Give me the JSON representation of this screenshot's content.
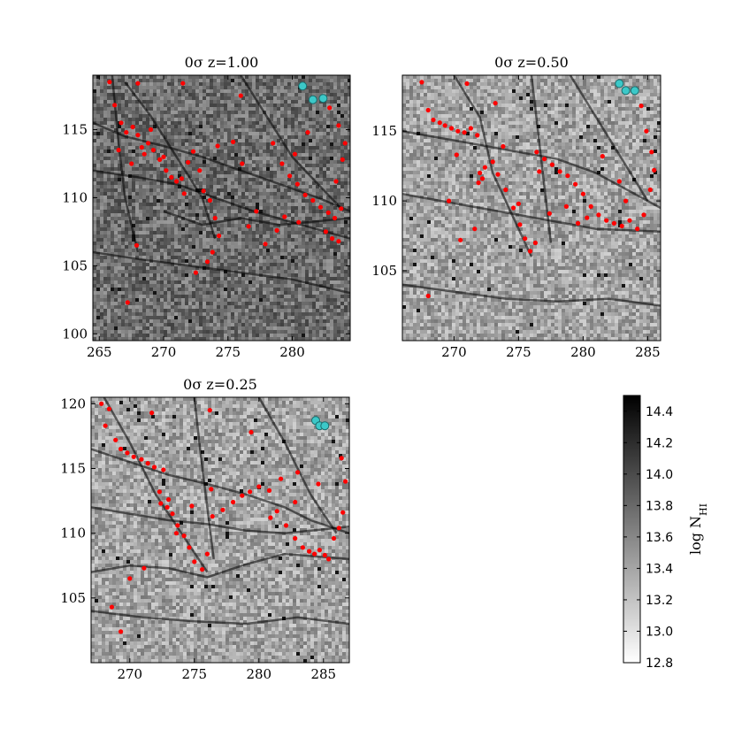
{
  "chart_data": [
    {
      "type": "scatter",
      "title": "0σ z=1.00",
      "xlim": [
        264.5,
        284.5
      ],
      "ylim": [
        99.5,
        119
      ],
      "xticks": [
        265,
        270,
        275,
        280
      ],
      "yticks": [
        100,
        105,
        110,
        115
      ],
      "xtick_labels": [
        "265",
        "270",
        "275",
        "280"
      ],
      "ytick_labels": [
        "100",
        "105",
        "110",
        "115"
      ],
      "filaments": [
        [
          [
            264.5,
            115.5
          ],
          [
            267,
            114.5
          ],
          [
            270,
            113.8
          ],
          [
            273,
            113
          ],
          [
            276,
            112
          ],
          [
            279,
            111
          ],
          [
            282,
            110
          ],
          [
            284.5,
            109
          ]
        ],
        [
          [
            264.5,
            112
          ],
          [
            268,
            111.5
          ],
          [
            271,
            111
          ],
          [
            274,
            110
          ],
          [
            277,
            109
          ],
          [
            280,
            108.2
          ],
          [
            284.5,
            107
          ]
        ],
        [
          [
            267,
            118.5
          ],
          [
            269,
            116
          ],
          [
            271,
            113
          ],
          [
            273,
            110
          ],
          [
            274,
            107
          ]
        ],
        [
          [
            276,
            119
          ],
          [
            278,
            116
          ],
          [
            280,
            113
          ],
          [
            282,
            111
          ],
          [
            284,
            109
          ]
        ],
        [
          [
            264.5,
            106
          ],
          [
            268,
            105.5
          ],
          [
            272,
            105
          ],
          [
            276,
            104.5
          ],
          [
            280,
            104
          ],
          [
            284.5,
            103
          ]
        ],
        [
          [
            270,
            109
          ],
          [
            273,
            108
          ],
          [
            276,
            108.5
          ],
          [
            279,
            108
          ],
          [
            284.5,
            108.5
          ]
        ],
        [
          [
            266,
            119
          ],
          [
            266.5,
            114
          ],
          [
            267,
            110
          ],
          [
            268,
            106
          ]
        ]
      ],
      "points": [
        [
          265.8,
          118.5
        ],
        [
          266.2,
          116.8
        ],
        [
          266.7,
          115.5
        ],
        [
          267.1,
          114.8
        ],
        [
          267.6,
          115.2
        ],
        [
          268.0,
          114.6
        ],
        [
          268.3,
          113.7
        ],
        [
          268.8,
          114.0
        ],
        [
          269.2,
          113.5
        ],
        [
          269.7,
          112.8
        ],
        [
          270.2,
          112.0
        ],
        [
          270.6,
          111.5
        ],
        [
          271.0,
          111.2
        ],
        [
          271.4,
          111.4
        ],
        [
          271.9,
          112.6
        ],
        [
          272.3,
          113.4
        ],
        [
          272.8,
          112.0
        ],
        [
          273.1,
          110.5
        ],
        [
          273.6,
          109.8
        ],
        [
          274.0,
          108.5
        ],
        [
          274.3,
          107.2
        ],
        [
          273.8,
          106.0
        ],
        [
          273.4,
          105.3
        ],
        [
          272.5,
          104.5
        ],
        [
          271.6,
          110.3
        ],
        [
          270.0,
          113.0
        ],
        [
          269.0,
          115.0
        ],
        [
          268.5,
          113.2
        ],
        [
          267.5,
          112.5
        ],
        [
          266.5,
          113.5
        ],
        [
          267.9,
          106.5
        ],
        [
          267.2,
          102.3
        ],
        [
          268.0,
          118.4
        ],
        [
          271.5,
          118.4
        ],
        [
          276.0,
          117.5
        ],
        [
          278.5,
          114.0
        ],
        [
          279.2,
          112.5
        ],
        [
          279.8,
          111.6
        ],
        [
          280.4,
          111.0
        ],
        [
          281.0,
          110.2
        ],
        [
          281.6,
          109.8
        ],
        [
          282.2,
          109.3
        ],
        [
          282.8,
          108.9
        ],
        [
          283.3,
          108.5
        ],
        [
          283.8,
          109.2
        ],
        [
          282.6,
          107.5
        ],
        [
          283.1,
          107.0
        ],
        [
          283.6,
          106.8
        ],
        [
          280.5,
          108.2
        ],
        [
          279.4,
          108.6
        ],
        [
          278.8,
          107.6
        ],
        [
          277.9,
          106.6
        ],
        [
          276.6,
          107.9
        ],
        [
          277.2,
          109.0
        ],
        [
          276.1,
          112.5
        ],
        [
          283.4,
          111.2
        ],
        [
          283.9,
          112.8
        ],
        [
          284.1,
          114.0
        ],
        [
          283.6,
          115.3
        ],
        [
          282.9,
          116.6
        ],
        [
          282.4,
          117.4
        ],
        [
          280.2,
          113.2
        ],
        [
          281.2,
          114.8
        ],
        [
          275.4,
          114.1
        ],
        [
          274.2,
          113.8
        ]
      ],
      "highlighted_points": [
        [
          280.8,
          118.2
        ],
        [
          281.6,
          117.2
        ],
        [
          282.4,
          117.3
        ]
      ]
    },
    {
      "type": "scatter",
      "title": "0σ z=0.50",
      "xlim": [
        266,
        286
      ],
      "ylim": [
        100,
        119
      ],
      "xticks": [
        270,
        275,
        280,
        285
      ],
      "yticks": [
        105,
        110,
        115
      ],
      "xtick_labels": [
        "270",
        "275",
        "280",
        "285"
      ],
      "ytick_labels": [
        "105",
        "110",
        "115"
      ],
      "filaments": [
        [
          [
            266,
            115
          ],
          [
            269,
            114.5
          ],
          [
            272,
            114
          ],
          [
            275,
            113.5
          ],
          [
            278,
            113
          ],
          [
            281,
            112
          ],
          [
            284,
            110.5
          ],
          [
            286,
            109.5
          ]
        ],
        [
          [
            266,
            110.5
          ],
          [
            269,
            110
          ],
          [
            272,
            109.5
          ],
          [
            275,
            109
          ],
          [
            278,
            108.5
          ],
          [
            281,
            108
          ],
          [
            286,
            107.8
          ]
        ],
        [
          [
            270,
            119
          ],
          [
            272,
            116
          ],
          [
            273,
            112
          ],
          [
            274.5,
            109
          ],
          [
            276,
            106
          ]
        ],
        [
          [
            279,
            119
          ],
          [
            281,
            116
          ],
          [
            283,
            113
          ],
          [
            285,
            110
          ]
        ],
        [
          [
            266,
            104
          ],
          [
            270,
            103.5
          ],
          [
            274,
            103
          ],
          [
            278,
            102.8
          ],
          [
            282,
            103
          ],
          [
            286,
            102.5
          ]
        ],
        [
          [
            276,
            119
          ],
          [
            276.5,
            115
          ],
          [
            277,
            111
          ],
          [
            277.5,
            107
          ]
        ]
      ],
      "points": [
        [
          267.5,
          118.5
        ],
        [
          268.0,
          116.5
        ],
        [
          268.4,
          115.8
        ],
        [
          268.9,
          115.6
        ],
        [
          269.3,
          115.4
        ],
        [
          269.8,
          115.2
        ],
        [
          270.3,
          115.0
        ],
        [
          270.8,
          114.9
        ],
        [
          271.3,
          115.2
        ],
        [
          271.8,
          114.7
        ],
        [
          272.0,
          112.0
        ],
        [
          272.2,
          111.6
        ],
        [
          271.9,
          111.3
        ],
        [
          272.4,
          112.4
        ],
        [
          273.0,
          112.8
        ],
        [
          273.4,
          111.9
        ],
        [
          274.0,
          110.8
        ],
        [
          274.6,
          109.5
        ],
        [
          275.1,
          108.3
        ],
        [
          275.5,
          107.3
        ],
        [
          275.9,
          106.4
        ],
        [
          276.3,
          107.0
        ],
        [
          271.6,
          108.0
        ],
        [
          270.5,
          107.2
        ],
        [
          269.6,
          110.0
        ],
        [
          270.2,
          113.3
        ],
        [
          273.8,
          113.9
        ],
        [
          276.4,
          113.5
        ],
        [
          277.0,
          113.0
        ],
        [
          277.6,
          112.6
        ],
        [
          278.2,
          112.1
        ],
        [
          278.8,
          111.8
        ],
        [
          279.4,
          111.2
        ],
        [
          280.0,
          110.5
        ],
        [
          280.6,
          109.6
        ],
        [
          281.2,
          109.0
        ],
        [
          281.8,
          108.6
        ],
        [
          282.4,
          108.4
        ],
        [
          283.0,
          108.2
        ],
        [
          283.6,
          108.6
        ],
        [
          284.2,
          108.0
        ],
        [
          284.7,
          109.0
        ],
        [
          285.2,
          110.8
        ],
        [
          285.5,
          112.2
        ],
        [
          285.3,
          113.5
        ],
        [
          284.9,
          115.0
        ],
        [
          284.5,
          116.8
        ],
        [
          280.3,
          108.8
        ],
        [
          279.6,
          108.4
        ],
        [
          278.7,
          109.6
        ],
        [
          277.4,
          109.1
        ],
        [
          275.0,
          109.8
        ],
        [
          268.0,
          103.2
        ],
        [
          271.0,
          118.4
        ],
        [
          273.2,
          117.0
        ],
        [
          276.6,
          112.1
        ],
        [
          281.5,
          113.2
        ],
        [
          282.8,
          111.4
        ],
        [
          283.3,
          110.0
        ]
      ],
      "highlighted_points": [
        [
          282.8,
          118.4
        ],
        [
          283.3,
          117.9
        ],
        [
          284.0,
          117.9
        ]
      ]
    },
    {
      "type": "scatter",
      "title": "0σ z=0.25",
      "xlim": [
        267,
        287
      ],
      "ylim": [
        100,
        120.5
      ],
      "xticks": [
        270,
        275,
        280,
        285
      ],
      "yticks": [
        105,
        110,
        115,
        120
      ],
      "xtick_labels": [
        "270",
        "275",
        "280",
        "285"
      ],
      "ytick_labels": [
        "105",
        "110",
        "115",
        "120"
      ],
      "filaments": [
        [
          [
            267,
            116.5
          ],
          [
            270,
            115.5
          ],
          [
            273,
            114.5
          ],
          [
            276,
            113.8
          ],
          [
            279,
            113
          ],
          [
            282,
            112
          ],
          [
            284,
            111
          ],
          [
            287,
            110
          ]
        ],
        [
          [
            267,
            112
          ],
          [
            270,
            111.5
          ],
          [
            273,
            111
          ],
          [
            276,
            110.7
          ],
          [
            279,
            110.2
          ],
          [
            282,
            110
          ],
          [
            287,
            110.5
          ]
        ],
        [
          [
            268,
            120.5
          ],
          [
            270,
            117
          ],
          [
            272,
            113
          ],
          [
            274,
            110
          ],
          [
            276,
            107
          ]
        ],
        [
          [
            280,
            120.5
          ],
          [
            282,
            117
          ],
          [
            284,
            113
          ],
          [
            286,
            110
          ]
        ],
        [
          [
            267,
            104
          ],
          [
            271,
            103.5
          ],
          [
            275,
            103.2
          ],
          [
            279,
            103
          ],
          [
            283,
            103.5
          ],
          [
            287,
            103
          ]
        ],
        [
          [
            275,
            120.5
          ],
          [
            275.5,
            116
          ],
          [
            276,
            112
          ],
          [
            276.5,
            108
          ]
        ],
        [
          [
            267,
            107
          ],
          [
            270,
            107.5
          ],
          [
            273,
            107.3
          ],
          [
            276,
            106.6
          ],
          [
            279,
            107.6
          ],
          [
            282,
            108.4
          ],
          [
            287,
            108
          ]
        ]
      ],
      "points": [
        [
          267.8,
          120.0
        ],
        [
          268.4,
          119.6
        ],
        [
          268.1,
          118.3
        ],
        [
          268.9,
          117.2
        ],
        [
          269.3,
          116.5
        ],
        [
          269.8,
          116.2
        ],
        [
          270.3,
          115.9
        ],
        [
          270.9,
          115.7
        ],
        [
          271.4,
          115.4
        ],
        [
          271.9,
          115.1
        ],
        [
          272.6,
          114.9
        ],
        [
          273.0,
          112.6
        ],
        [
          272.4,
          112.3
        ],
        [
          272.9,
          112.0
        ],
        [
          273.3,
          111.5
        ],
        [
          273.7,
          110.6
        ],
        [
          274.2,
          109.8
        ],
        [
          274.6,
          108.9
        ],
        [
          275.0,
          107.8
        ],
        [
          275.6,
          107.2
        ],
        [
          276.0,
          108.4
        ],
        [
          276.4,
          111.3
        ],
        [
          277.2,
          111.8
        ],
        [
          278.0,
          112.4
        ],
        [
          278.7,
          112.9
        ],
        [
          279.3,
          113.2
        ],
        [
          280.0,
          113.6
        ],
        [
          280.8,
          113.3
        ],
        [
          281.4,
          111.7
        ],
        [
          282.1,
          110.6
        ],
        [
          282.8,
          109.6
        ],
        [
          283.4,
          108.9
        ],
        [
          283.9,
          108.6
        ],
        [
          284.3,
          108.4
        ],
        [
          284.7,
          108.7
        ],
        [
          285.1,
          108.3
        ],
        [
          285.4,
          108.0
        ],
        [
          285.8,
          109.6
        ],
        [
          286.2,
          110.4
        ],
        [
          286.5,
          111.6
        ],
        [
          286.7,
          114.0
        ],
        [
          286.4,
          115.8
        ],
        [
          284.6,
          113.8
        ],
        [
          283.0,
          114.7
        ],
        [
          281.7,
          114.2
        ],
        [
          276.3,
          113.4
        ],
        [
          274.8,
          112.1
        ],
        [
          272.3,
          113.2
        ],
        [
          271.1,
          107.3
        ],
        [
          269.3,
          102.4
        ],
        [
          270.0,
          106.5
        ],
        [
          268.6,
          104.3
        ],
        [
          271.7,
          119.3
        ],
        [
          276.2,
          119.5
        ],
        [
          279.4,
          117.8
        ],
        [
          282.8,
          112.4
        ],
        [
          280.9,
          111.2
        ],
        [
          273.6,
          110.0
        ]
      ],
      "highlighted_points": [
        [
          284.4,
          118.7
        ],
        [
          284.7,
          118.3
        ],
        [
          285.1,
          118.3
        ]
      ]
    }
  ],
  "colorbar": {
    "label": "log N_HI",
    "min": 12.8,
    "max": 14.5,
    "ticks": [
      "12.8",
      "13.0",
      "13.2",
      "13.4",
      "13.6",
      "13.8",
      "14.0",
      "14.2",
      "14.4"
    ],
    "tick_values": [
      12.8,
      13.0,
      13.2,
      13.4,
      13.6,
      13.8,
      14.0,
      14.2,
      14.4
    ]
  },
  "colors": {
    "point": "#ff0000",
    "highlight": "#3cc8c8",
    "highlight_edge": "#1a6a6a",
    "filament": "#000000"
  }
}
